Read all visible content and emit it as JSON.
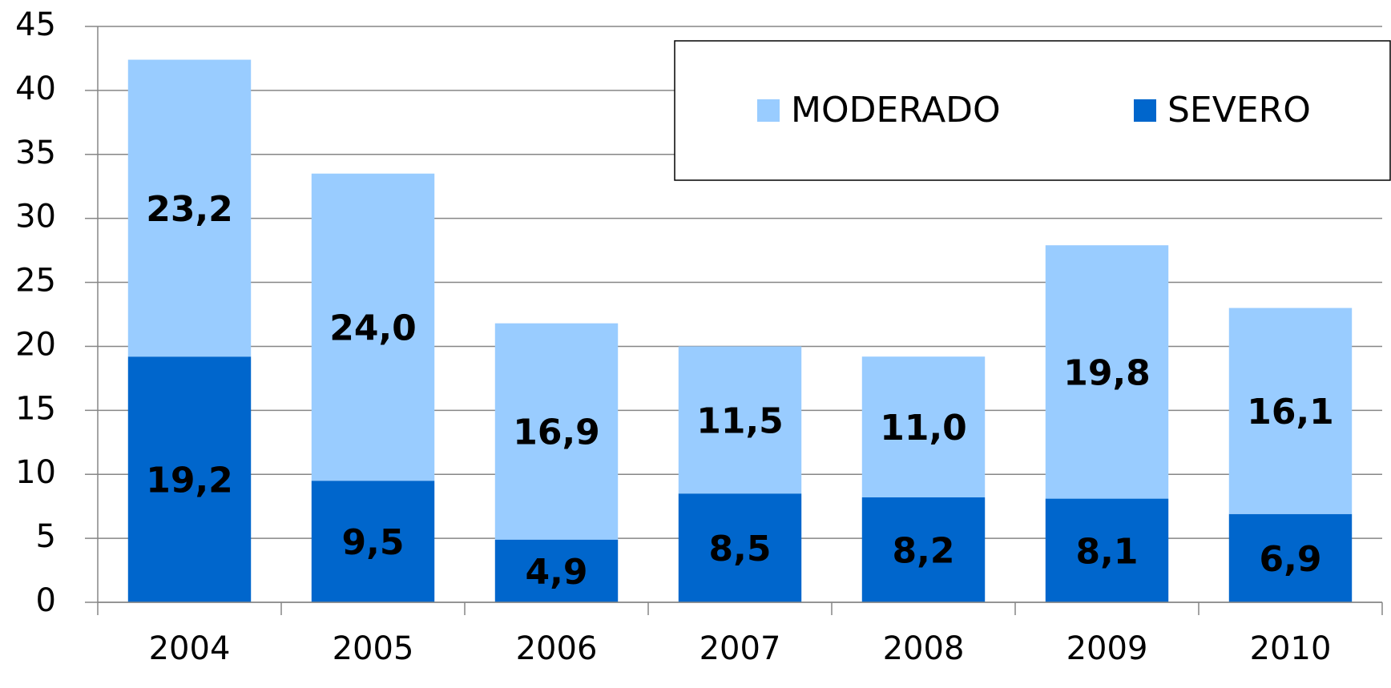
{
  "chart_data": {
    "type": "stacked-bar",
    "categories": [
      "2004",
      "2005",
      "2006",
      "2007",
      "2008",
      "2009",
      "2010"
    ],
    "series": [
      {
        "name": "SEVERO",
        "color": "#0066cc",
        "values": [
          19.2,
          9.5,
          4.9,
          8.5,
          8.2,
          8.1,
          6.9
        ],
        "value_labels": [
          "19,2",
          "9,5",
          "4,9",
          "8,5",
          "8,2",
          "8,1",
          "6,9"
        ]
      },
      {
        "name": "MODERADO",
        "color": "#99ccff",
        "values": [
          23.2,
          24.0,
          16.9,
          11.5,
          11.0,
          19.8,
          16.1
        ],
        "value_labels": [
          "23,2",
          "24,0",
          "16,9",
          "11,5",
          "11,0",
          "19,8",
          "16,1"
        ]
      }
    ],
    "ylim": [
      0,
      45
    ],
    "yticks": [
      0,
      5,
      10,
      15,
      20,
      25,
      30,
      35,
      40,
      45
    ],
    "grid": true,
    "legend": "top-right"
  }
}
